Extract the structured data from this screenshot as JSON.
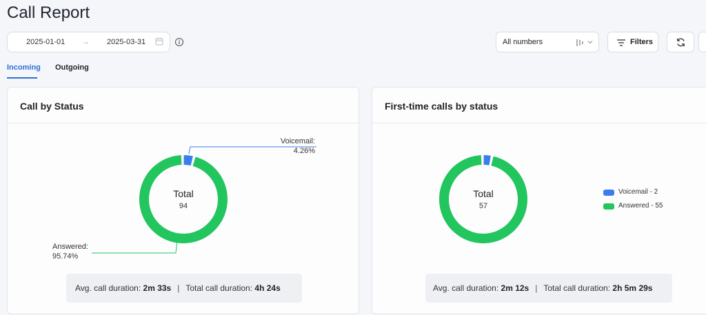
{
  "page": {
    "title": "Call Report"
  },
  "toolbar": {
    "date_from": "2025-01-01",
    "date_arrow": "→",
    "date_to": "2025-03-31",
    "numbers_select": "All numbers",
    "filters_label": "Filters"
  },
  "tabs": {
    "incoming": "Incoming",
    "outgoing": "Outgoing",
    "active": "Incoming"
  },
  "colors": {
    "answered": "#22c55e",
    "voicemail": "#3b7ded",
    "accent": "#2f6fd6"
  },
  "card1": {
    "title": "Call by Status",
    "center_label": "Total",
    "center_value": "94",
    "voicemail_label": "Voicemail:",
    "voicemail_pct": "4.26%",
    "answered_label": "Answered:",
    "answered_pct": "95.74%",
    "avg_label": "Avg. call duration:",
    "avg_value": "2m 33s",
    "divider": "|",
    "total_label": "Total call duration:",
    "total_value": "4h 24s"
  },
  "card2": {
    "title": "First-time calls by status",
    "center_label": "Total",
    "center_value": "57",
    "legend": [
      "Voicemail - 2",
      "Answered - 55"
    ],
    "avg_label": "Avg. call duration:",
    "avg_value": "2m 12s",
    "divider": "|",
    "total_label": "Total call duration:",
    "total_value": "2h 5m 29s"
  },
  "chart_data": [
    {
      "type": "pie",
      "title": "Call by Status",
      "categories": [
        "Voicemail",
        "Answered"
      ],
      "values": [
        4.26,
        95.74
      ],
      "unit": "%",
      "total": 94
    },
    {
      "type": "pie",
      "title": "First-time calls by status",
      "categories": [
        "Voicemail",
        "Answered"
      ],
      "values": [
        2,
        55
      ],
      "total": 57
    }
  ]
}
